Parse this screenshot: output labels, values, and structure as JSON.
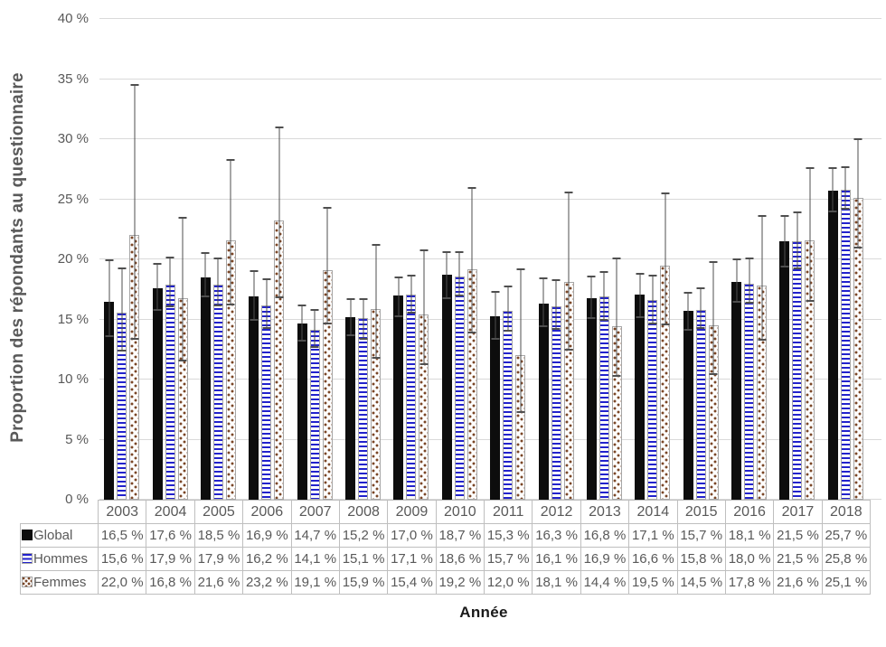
{
  "colors": {
    "background": "#ffffff",
    "grid": "#d9d9d9",
    "axis_text": "#595959",
    "table_border": "#bfbfbf",
    "table_text": "#595959",
    "bar_global": "#0d0d0d",
    "bar_hommes_stripe": "#2222cc",
    "bar_femmes_dot": "#7a4626",
    "bar_outline": "#a6a6a6",
    "error_bar": "#4f4f4f",
    "x_title_text": "#1a1a1a"
  },
  "chart_data": {
    "type": "bar",
    "title": "",
    "xlabel": "Année",
    "ylabel": "Proportion des répondants au questionnaire",
    "ylim": [
      0,
      40
    ],
    "ytick_step": 5,
    "ytick_labels": [
      "0 %",
      "5 %",
      "10 %",
      "15 %",
      "20 %",
      "25 %",
      "30 %",
      "35 %",
      "40 %"
    ],
    "grid": true,
    "legend_position": "table-left",
    "error_bars": true,
    "categories": [
      "2003",
      "2004",
      "2005",
      "2006",
      "2007",
      "2008",
      "2009",
      "2010",
      "2011",
      "2012",
      "2013",
      "2014",
      "2015",
      "2016",
      "2017",
      "2018"
    ],
    "series": [
      {
        "name": "Global",
        "pattern": "solid-black",
        "values": [
          16.5,
          17.6,
          18.5,
          16.9,
          14.7,
          15.2,
          17.0,
          18.7,
          15.3,
          16.3,
          16.8,
          17.1,
          15.7,
          18.1,
          21.5,
          25.7
        ],
        "display": [
          "16,5 %",
          "17,6 %",
          "18,5 %",
          "16,9 %",
          "14,7 %",
          "15,2 %",
          "17,0 %",
          "18,7 %",
          "15,3 %",
          "16,3 %",
          "16,8 %",
          "17,1 %",
          "15,7 %",
          "18,1 %",
          "21,5 %",
          "25,7 %"
        ],
        "error_low": [
          13.6,
          15.8,
          16.9,
          15.0,
          13.2,
          13.7,
          15.3,
          16.8,
          13.4,
          14.4,
          15.1,
          15.2,
          14.1,
          16.5,
          19.4,
          24.0
        ],
        "error_high": [
          19.9,
          19.6,
          20.5,
          19.0,
          16.2,
          16.7,
          18.5,
          20.6,
          17.3,
          18.4,
          18.6,
          18.8,
          17.2,
          20.0,
          23.6,
          27.6
        ]
      },
      {
        "name": "Hommes",
        "pattern": "blue-stripes",
        "values": [
          15.6,
          17.9,
          17.9,
          16.2,
          14.1,
          15.1,
          17.1,
          18.6,
          15.7,
          16.1,
          16.9,
          16.6,
          15.8,
          18.0,
          21.5,
          25.8
        ],
        "display": [
          "15,6 %",
          "17,9 %",
          "17,9 %",
          "16,2 %",
          "14,1 %",
          "15,1 %",
          "17,1 %",
          "18,6 %",
          "15,7 %",
          "16,1 %",
          "16,9 %",
          "16,6 %",
          "15,8 %",
          "18,0 %",
          "21,5 %",
          "25,8 %"
        ],
        "error_low": [
          12.3,
          16.0,
          16.1,
          14.2,
          12.6,
          13.3,
          15.5,
          16.9,
          14.0,
          14.1,
          14.9,
          14.6,
          14.2,
          16.3,
          19.2,
          24.1
        ],
        "error_high": [
          19.2,
          20.1,
          20.0,
          18.3,
          15.7,
          16.6,
          18.6,
          20.5,
          17.7,
          18.2,
          18.9,
          18.6,
          17.5,
          20.0,
          23.8,
          27.6
        ]
      },
      {
        "name": "Femmes",
        "pattern": "brown-dots",
        "values": [
          22.0,
          16.8,
          21.6,
          23.2,
          19.1,
          15.9,
          15.4,
          19.2,
          12.0,
          18.1,
          14.4,
          19.5,
          14.5,
          17.8,
          21.6,
          25.1
        ],
        "display": [
          "22,0 %",
          "16,8 %",
          "21,6 %",
          "23,2 %",
          "19,1 %",
          "15,9 %",
          "15,4 %",
          "19,2 %",
          "12,0 %",
          "18,1 %",
          "14,4 %",
          "19,5 %",
          "14,5 %",
          "17,8 %",
          "21,6 %",
          "25,1 %"
        ],
        "error_low": [
          13.3,
          11.5,
          16.2,
          16.8,
          14.6,
          11.7,
          11.2,
          13.8,
          7.2,
          12.4,
          10.2,
          14.5,
          10.4,
          13.2,
          16.5,
          20.9
        ],
        "error_high": [
          34.4,
          23.4,
          28.2,
          30.9,
          24.2,
          21.1,
          20.7,
          25.9,
          19.1,
          25.5,
          20.0,
          25.4,
          19.7,
          23.5,
          27.5,
          29.9
        ]
      }
    ]
  }
}
